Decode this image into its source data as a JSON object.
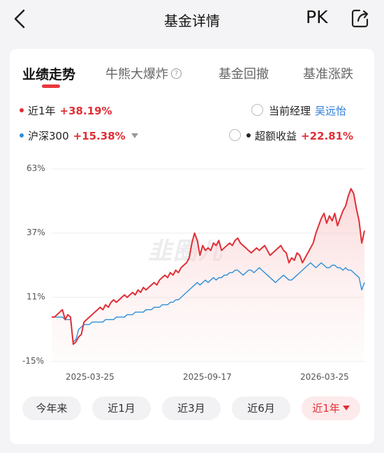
{
  "header": {
    "title": "基金详情",
    "pk_label": "PK"
  },
  "tabs": [
    {
      "label": "业绩走势",
      "active": true
    },
    {
      "label": "牛熊大爆炸",
      "help": "?"
    },
    {
      "label": "基金回撤"
    },
    {
      "label": "基准涨跌"
    }
  ],
  "legend": {
    "fund": {
      "label": "近1年",
      "value": "+38.19%"
    },
    "benchmark": {
      "label": "沪深300",
      "value": "+15.38%"
    },
    "manager": {
      "label": "当前经理",
      "name": "吴远怡"
    },
    "excess": {
      "label": "超额收益",
      "value": "+22.81%"
    }
  },
  "colors": {
    "fund": "#e02f36",
    "benchmark": "#2f8fd8",
    "accent": "#e02f36"
  },
  "watermark": "韭圈儿",
  "chart_data": {
    "type": "line",
    "ylim": [
      -15,
      63
    ],
    "yticks": [
      "63%",
      "37%",
      "11%",
      "-15%"
    ],
    "xticks": [
      "2025-03-25",
      "2025-09-17",
      "2026-03-25"
    ],
    "series": [
      {
        "name": "近1年",
        "values": [
          3,
          3,
          4,
          5,
          6,
          2,
          4,
          3,
          -8,
          -7,
          -5,
          -4,
          1,
          2,
          3,
          4,
          5,
          6,
          7,
          6,
          8,
          7,
          9,
          10,
          9,
          10,
          11,
          12,
          11,
          12,
          13,
          12,
          14,
          13,
          15,
          14,
          15,
          16,
          17,
          16,
          18,
          19,
          20,
          19,
          21,
          20,
          22,
          21,
          23,
          24,
          25,
          27,
          33,
          37,
          34,
          28,
          32,
          30,
          31,
          30,
          33,
          32,
          34,
          30,
          31,
          32,
          33,
          32,
          34,
          35,
          33,
          32,
          31,
          30,
          29,
          30,
          31,
          30,
          31,
          32,
          30,
          28,
          29,
          30,
          31,
          32,
          30,
          29,
          25,
          27,
          26,
          29,
          28,
          25,
          27,
          29,
          31,
          33,
          37,
          40,
          43,
          45,
          41,
          44,
          42,
          45,
          40,
          43,
          46,
          48,
          52,
          55,
          53,
          47,
          42,
          33,
          38
        ]
      },
      {
        "name": "沪深300",
        "values": [
          3,
          3,
          3,
          3,
          3,
          2,
          2,
          2,
          -7,
          -6,
          -2,
          -1,
          0,
          0,
          0,
          1,
          1,
          1,
          1,
          1,
          2,
          2,
          2,
          2,
          3,
          3,
          3,
          3,
          4,
          4,
          4,
          5,
          5,
          5,
          5,
          6,
          6,
          6,
          7,
          7,
          7,
          8,
          8,
          8,
          9,
          9,
          10,
          10,
          11,
          12,
          13,
          14,
          15,
          16,
          17,
          16,
          17,
          18,
          17,
          18,
          19,
          18,
          19,
          19,
          20,
          20,
          21,
          21,
          22,
          22,
          21,
          20,
          21,
          22,
          22,
          21,
          22,
          23,
          22,
          21,
          20,
          19,
          18,
          17,
          18,
          19,
          20,
          19,
          18,
          18,
          19,
          20,
          21,
          22,
          23,
          24,
          25,
          24,
          23,
          24,
          25,
          24,
          23,
          23,
          24,
          24,
          23,
          23,
          22,
          23,
          22,
          22,
          21,
          20,
          19,
          14,
          17
        ]
      }
    ]
  },
  "ranges": [
    {
      "label": "今年来"
    },
    {
      "label": "近1月"
    },
    {
      "label": "近3月"
    },
    {
      "label": "近6月"
    },
    {
      "label": "近1年",
      "active": true
    }
  ]
}
